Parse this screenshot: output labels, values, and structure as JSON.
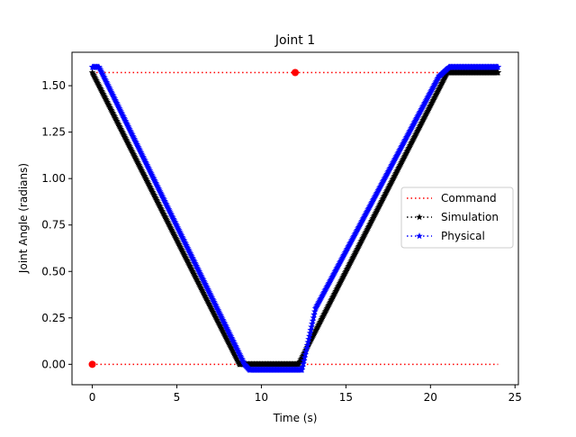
{
  "chart_data": {
    "type": "line",
    "title": "Joint 1",
    "xlabel": "Time (s)",
    "ylabel": "Joint Angle (radians)",
    "xlim": [
      -1.2,
      25.2
    ],
    "ylim": [
      -0.11,
      1.68
    ],
    "xticks": [
      0,
      5,
      10,
      15,
      20,
      25
    ],
    "yticks": [
      0.0,
      0.25,
      0.5,
      0.75,
      1.0,
      1.25,
      1.5
    ],
    "xtick_labels": [
      "0",
      "5",
      "10",
      "15",
      "20",
      "25"
    ],
    "ytick_labels": [
      "0.00",
      "0.25",
      "0.50",
      "0.75",
      "1.00",
      "1.25",
      "1.50"
    ],
    "grid": false,
    "legend_position": "center-right",
    "legend": [
      "Command",
      "Simulation",
      "Physical"
    ],
    "series": [
      {
        "name": "Command",
        "color": "#ff0000",
        "linestyle": "dotted",
        "marker": "circle",
        "segments": [
          {
            "x": [
              0,
              24
            ],
            "y": [
              1.5708,
              1.5708
            ]
          },
          {
            "x": [
              0,
              24
            ],
            "y": [
              0.0,
              0.0
            ]
          }
        ],
        "marker_points": [
          {
            "x": 12,
            "y": 1.5708
          },
          {
            "x": 0,
            "y": 0.0
          }
        ]
      },
      {
        "name": "Simulation",
        "color": "#000000",
        "linestyle": "dotted",
        "marker": "star",
        "x": [
          0,
          8.7,
          9.0,
          12.0,
          12.2,
          20.6,
          21.0,
          24.0
        ],
        "y": [
          1.5708,
          0.0,
          0.0,
          0.0,
          0.0,
          1.5,
          1.5708,
          1.5708
        ]
      },
      {
        "name": "Physical",
        "color": "#0000ff",
        "linestyle": "dotted",
        "marker": "star",
        "x": [
          0,
          0.4,
          9.0,
          9.3,
          12.4,
          13.2,
          20.5,
          21.1,
          24.0
        ],
        "y": [
          1.6,
          1.6,
          0.0,
          -0.03,
          -0.03,
          0.3,
          1.55,
          1.6,
          1.6
        ]
      }
    ]
  }
}
